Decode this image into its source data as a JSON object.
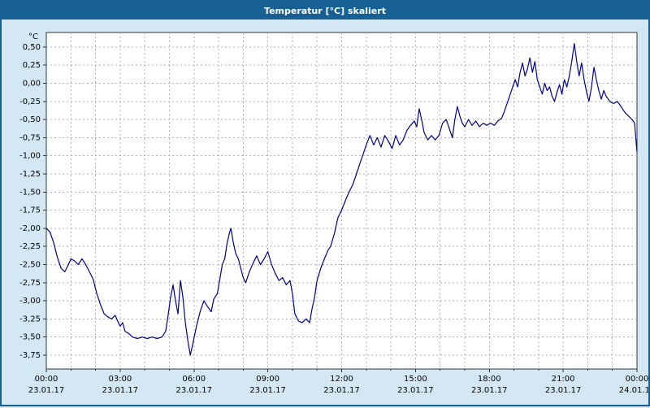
{
  "window": {
    "title": "Temperatur [°C] skaliert"
  },
  "colors": {
    "titlebar_bg": "#176093",
    "titlebar_text": "#FFFFFF",
    "window_bg": "#D3E8F4",
    "plot_bg": "#FFFFFF",
    "grid": "#A9B2BC",
    "axis": "#333333",
    "line": "#00008B",
    "label_text": "#000000"
  },
  "chart_data": {
    "type": "line",
    "title": "Temperatur [°C] skaliert",
    "y_unit_label": "°C",
    "xlabel": "",
    "ylabel": "°C",
    "grid": true,
    "legend_position": "none",
    "xlim": [
      0,
      24
    ],
    "ylim": [
      -3.94,
      0.7
    ],
    "x_tick_hours": [
      0,
      3,
      6,
      9,
      12,
      15,
      18,
      21,
      24
    ],
    "x_tick_time_labels": [
      "00:00",
      "03:00",
      "06:00",
      "09:00",
      "12:00",
      "15:00",
      "18:00",
      "21:00",
      "00:00"
    ],
    "x_tick_date_labels": [
      "23.01.17",
      "23.01.17",
      "23.01.17",
      "23.01.17",
      "23.01.17",
      "23.01.17",
      "23.01.17",
      "23.01.17",
      "24.01.17"
    ],
    "y_tick_values": [
      0.5,
      0.25,
      0,
      -0.25,
      -0.5,
      -0.75,
      -1,
      -1.25,
      -1.5,
      -1.75,
      -2,
      -2.25,
      -2.5,
      -2.75,
      -3,
      -3.25,
      -3.5,
      -3.75
    ],
    "y_tick_labels": [
      "0,50",
      "0,25",
      "0,00",
      "-0,25",
      "-0,50",
      "-0,75",
      "-1,00",
      "-1,25",
      "-1,50",
      "-1,75",
      "-2,00",
      "-2,25",
      "-2,50",
      "-2,75",
      "-3,00",
      "-3,25",
      "-3,50",
      "-3,75"
    ],
    "series": [
      {
        "name": "Temperatur",
        "points": [
          [
            0.0,
            -2.0
          ],
          [
            0.15,
            -2.05
          ],
          [
            0.3,
            -2.2
          ],
          [
            0.45,
            -2.4
          ],
          [
            0.6,
            -2.55
          ],
          [
            0.75,
            -2.6
          ],
          [
            0.9,
            -2.5
          ],
          [
            1.0,
            -2.42
          ],
          [
            1.15,
            -2.45
          ],
          [
            1.3,
            -2.5
          ],
          [
            1.45,
            -2.42
          ],
          [
            1.6,
            -2.5
          ],
          [
            1.75,
            -2.6
          ],
          [
            1.9,
            -2.7
          ],
          [
            2.05,
            -2.9
          ],
          [
            2.2,
            -3.05
          ],
          [
            2.35,
            -3.18
          ],
          [
            2.5,
            -3.22
          ],
          [
            2.65,
            -3.25
          ],
          [
            2.8,
            -3.2
          ],
          [
            2.9,
            -3.28
          ],
          [
            3.0,
            -3.35
          ],
          [
            3.1,
            -3.3
          ],
          [
            3.2,
            -3.42
          ],
          [
            3.35,
            -3.45
          ],
          [
            3.5,
            -3.5
          ],
          [
            3.7,
            -3.52
          ],
          [
            3.9,
            -3.5
          ],
          [
            4.1,
            -3.52
          ],
          [
            4.3,
            -3.5
          ],
          [
            4.5,
            -3.52
          ],
          [
            4.7,
            -3.5
          ],
          [
            4.85,
            -3.42
          ],
          [
            4.95,
            -3.2
          ],
          [
            5.05,
            -2.95
          ],
          [
            5.15,
            -2.78
          ],
          [
            5.25,
            -3.0
          ],
          [
            5.35,
            -3.18
          ],
          [
            5.45,
            -2.72
          ],
          [
            5.55,
            -2.95
          ],
          [
            5.65,
            -3.3
          ],
          [
            5.75,
            -3.55
          ],
          [
            5.85,
            -3.75
          ],
          [
            5.95,
            -3.6
          ],
          [
            6.1,
            -3.35
          ],
          [
            6.25,
            -3.15
          ],
          [
            6.4,
            -3.0
          ],
          [
            6.55,
            -3.08
          ],
          [
            6.7,
            -3.15
          ],
          [
            6.8,
            -2.98
          ],
          [
            6.95,
            -2.9
          ],
          [
            7.05,
            -2.7
          ],
          [
            7.15,
            -2.5
          ],
          [
            7.25,
            -2.42
          ],
          [
            7.35,
            -2.2
          ],
          [
            7.45,
            -2.05
          ],
          [
            7.5,
            -2.0
          ],
          [
            7.6,
            -2.2
          ],
          [
            7.7,
            -2.35
          ],
          [
            7.8,
            -2.42
          ],
          [
            7.9,
            -2.55
          ],
          [
            8.0,
            -2.68
          ],
          [
            8.1,
            -2.75
          ],
          [
            8.25,
            -2.6
          ],
          [
            8.4,
            -2.48
          ],
          [
            8.55,
            -2.38
          ],
          [
            8.7,
            -2.5
          ],
          [
            8.85,
            -2.42
          ],
          [
            9.0,
            -2.32
          ],
          [
            9.15,
            -2.5
          ],
          [
            9.3,
            -2.62
          ],
          [
            9.45,
            -2.72
          ],
          [
            9.6,
            -2.68
          ],
          [
            9.75,
            -2.78
          ],
          [
            9.9,
            -2.72
          ],
          [
            10.0,
            -2.9
          ],
          [
            10.1,
            -3.18
          ],
          [
            10.25,
            -3.28
          ],
          [
            10.4,
            -3.3
          ],
          [
            10.55,
            -3.25
          ],
          [
            10.7,
            -3.3
          ],
          [
            10.8,
            -3.1
          ],
          [
            10.9,
            -2.95
          ],
          [
            11.0,
            -2.72
          ],
          [
            11.15,
            -2.55
          ],
          [
            11.3,
            -2.42
          ],
          [
            11.45,
            -2.3
          ],
          [
            11.55,
            -2.25
          ],
          [
            11.7,
            -2.08
          ],
          [
            11.85,
            -1.85
          ],
          [
            12.0,
            -1.75
          ],
          [
            12.15,
            -1.62
          ],
          [
            12.3,
            -1.5
          ],
          [
            12.45,
            -1.4
          ],
          [
            12.6,
            -1.25
          ],
          [
            12.75,
            -1.1
          ],
          [
            12.9,
            -0.95
          ],
          [
            13.0,
            -0.85
          ],
          [
            13.15,
            -0.72
          ],
          [
            13.3,
            -0.85
          ],
          [
            13.45,
            -0.75
          ],
          [
            13.6,
            -0.88
          ],
          [
            13.75,
            -0.72
          ],
          [
            13.9,
            -0.8
          ],
          [
            14.05,
            -0.9
          ],
          [
            14.2,
            -0.72
          ],
          [
            14.35,
            -0.85
          ],
          [
            14.5,
            -0.78
          ],
          [
            14.65,
            -0.65
          ],
          [
            14.8,
            -0.58
          ],
          [
            14.95,
            -0.52
          ],
          [
            15.05,
            -0.6
          ],
          [
            15.15,
            -0.35
          ],
          [
            15.25,
            -0.5
          ],
          [
            15.35,
            -0.68
          ],
          [
            15.5,
            -0.78
          ],
          [
            15.65,
            -0.72
          ],
          [
            15.8,
            -0.78
          ],
          [
            15.95,
            -0.72
          ],
          [
            16.1,
            -0.55
          ],
          [
            16.25,
            -0.5
          ],
          [
            16.4,
            -0.65
          ],
          [
            16.5,
            -0.75
          ],
          [
            16.6,
            -0.5
          ],
          [
            16.7,
            -0.32
          ],
          [
            16.8,
            -0.45
          ],
          [
            16.9,
            -0.55
          ],
          [
            17.0,
            -0.6
          ],
          [
            17.15,
            -0.5
          ],
          [
            17.3,
            -0.58
          ],
          [
            17.45,
            -0.52
          ],
          [
            17.6,
            -0.6
          ],
          [
            17.75,
            -0.55
          ],
          [
            17.9,
            -0.58
          ],
          [
            18.05,
            -0.55
          ],
          [
            18.2,
            -0.58
          ],
          [
            18.35,
            -0.52
          ],
          [
            18.5,
            -0.48
          ],
          [
            18.6,
            -0.4
          ],
          [
            18.7,
            -0.3
          ],
          [
            18.85,
            -0.15
          ],
          [
            18.95,
            -0.05
          ],
          [
            19.05,
            0.05
          ],
          [
            19.15,
            -0.05
          ],
          [
            19.25,
            0.15
          ],
          [
            19.35,
            0.28
          ],
          [
            19.45,
            0.1
          ],
          [
            19.55,
            0.2
          ],
          [
            19.65,
            0.35
          ],
          [
            19.75,
            0.15
          ],
          [
            19.85,
            0.3
          ],
          [
            19.95,
            0.05
          ],
          [
            20.05,
            -0.05
          ],
          [
            20.15,
            -0.15
          ],
          [
            20.25,
            0.0
          ],
          [
            20.35,
            -0.1
          ],
          [
            20.45,
            -0.05
          ],
          [
            20.55,
            -0.18
          ],
          [
            20.65,
            -0.25
          ],
          [
            20.75,
            -0.12
          ],
          [
            20.85,
            -0.02
          ],
          [
            20.95,
            -0.15
          ],
          [
            21.05,
            0.05
          ],
          [
            21.15,
            -0.05
          ],
          [
            21.25,
            0.1
          ],
          [
            21.35,
            0.3
          ],
          [
            21.45,
            0.55
          ],
          [
            21.55,
            0.3
          ],
          [
            21.65,
            0.1
          ],
          [
            21.75,
            0.28
          ],
          [
            21.85,
            0.05
          ],
          [
            21.95,
            -0.12
          ],
          [
            22.05,
            -0.25
          ],
          [
            22.15,
            -0.05
          ],
          [
            22.25,
            0.22
          ],
          [
            22.35,
            0.05
          ],
          [
            22.45,
            -0.1
          ],
          [
            22.55,
            -0.22
          ],
          [
            22.65,
            -0.1
          ],
          [
            22.75,
            -0.18
          ],
          [
            22.9,
            -0.25
          ],
          [
            23.05,
            -0.28
          ],
          [
            23.2,
            -0.25
          ],
          [
            23.35,
            -0.32
          ],
          [
            23.5,
            -0.4
          ],
          [
            23.65,
            -0.45
          ],
          [
            23.8,
            -0.5
          ],
          [
            23.9,
            -0.55
          ],
          [
            24.0,
            -0.95
          ]
        ]
      }
    ]
  }
}
